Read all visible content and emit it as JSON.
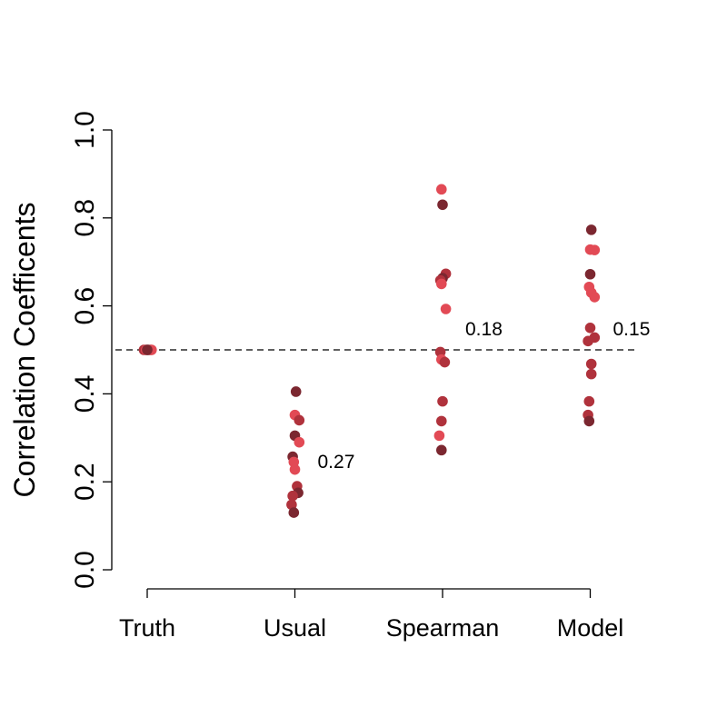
{
  "chart_data": {
    "type": "scatter",
    "title": "",
    "xlabel": "",
    "ylabel": "Correlation Coefficents",
    "ylim": [
      0,
      1
    ],
    "yticks": [
      "0.0",
      "0.2",
      "0.4",
      "0.6",
      "0.8",
      "1.0"
    ],
    "categories": [
      "Truth",
      "Usual",
      "Spearman",
      "Model"
    ],
    "reference_line": {
      "y": 0.5,
      "style": "dashed"
    },
    "grid": false,
    "colors": {
      "dark": "#7b2730",
      "mid": "#b0323c",
      "light": "#e24a55"
    },
    "groups": [
      {
        "category": "Truth",
        "annotation": "",
        "points": [
          {
            "dx": -0.03,
            "y": 0.5,
            "c": "mid"
          },
          {
            "dx": -0.01,
            "y": 0.5,
            "c": "light"
          },
          {
            "dx": 0.01,
            "y": 0.5,
            "c": "dark"
          },
          {
            "dx": 0.03,
            "y": 0.5,
            "c": "mid"
          },
          {
            "dx": 0.04,
            "y": 0.5,
            "c": "light"
          },
          {
            "dx": 0.0,
            "y": 0.5,
            "c": "dark"
          }
        ]
      },
      {
        "category": "Usual",
        "annotation": "0.27",
        "points": [
          {
            "dx": 0.01,
            "y": 0.405,
            "c": "dark"
          },
          {
            "dx": 0.0,
            "y": 0.352,
            "c": "light"
          },
          {
            "dx": 0.04,
            "y": 0.34,
            "c": "mid"
          },
          {
            "dx": 0.0,
            "y": 0.305,
            "c": "dark"
          },
          {
            "dx": 0.04,
            "y": 0.29,
            "c": "light"
          },
          {
            "dx": -0.02,
            "y": 0.257,
            "c": "dark"
          },
          {
            "dx": -0.01,
            "y": 0.245,
            "c": "light"
          },
          {
            "dx": 0.0,
            "y": 0.228,
            "c": "light"
          },
          {
            "dx": 0.02,
            "y": 0.19,
            "c": "mid"
          },
          {
            "dx": 0.03,
            "y": 0.175,
            "c": "dark"
          },
          {
            "dx": -0.02,
            "y": 0.168,
            "c": "mid"
          },
          {
            "dx": -0.03,
            "y": 0.148,
            "c": "mid"
          },
          {
            "dx": -0.01,
            "y": 0.13,
            "c": "dark"
          }
        ]
      },
      {
        "category": "Spearman",
        "annotation": "0.18",
        "points": [
          {
            "dx": -0.01,
            "y": 0.865,
            "c": "light"
          },
          {
            "dx": 0.0,
            "y": 0.83,
            "c": "dark"
          },
          {
            "dx": 0.03,
            "y": 0.673,
            "c": "mid"
          },
          {
            "dx": 0.0,
            "y": 0.663,
            "c": "dark"
          },
          {
            "dx": -0.02,
            "y": 0.658,
            "c": "mid"
          },
          {
            "dx": -0.01,
            "y": 0.65,
            "c": "light"
          },
          {
            "dx": 0.03,
            "y": 0.593,
            "c": "light"
          },
          {
            "dx": -0.02,
            "y": 0.495,
            "c": "mid"
          },
          {
            "dx": -0.01,
            "y": 0.478,
            "c": "light"
          },
          {
            "dx": 0.02,
            "y": 0.472,
            "c": "mid"
          },
          {
            "dx": 0.0,
            "y": 0.383,
            "c": "mid"
          },
          {
            "dx": -0.01,
            "y": 0.338,
            "c": "mid"
          },
          {
            "dx": -0.03,
            "y": 0.305,
            "c": "light"
          },
          {
            "dx": -0.01,
            "y": 0.272,
            "c": "dark"
          }
        ]
      },
      {
        "category": "Model",
        "annotation": "0.15",
        "points": [
          {
            "dx": 0.01,
            "y": 0.773,
            "c": "dark"
          },
          {
            "dx": 0.0,
            "y": 0.728,
            "c": "light"
          },
          {
            "dx": 0.04,
            "y": 0.727,
            "c": "light"
          },
          {
            "dx": 0.0,
            "y": 0.672,
            "c": "dark"
          },
          {
            "dx": -0.01,
            "y": 0.643,
            "c": "light"
          },
          {
            "dx": 0.01,
            "y": 0.63,
            "c": "light"
          },
          {
            "dx": 0.04,
            "y": 0.62,
            "c": "light"
          },
          {
            "dx": 0.0,
            "y": 0.55,
            "c": "mid"
          },
          {
            "dx": 0.04,
            "y": 0.528,
            "c": "mid"
          },
          {
            "dx": -0.02,
            "y": 0.52,
            "c": "mid"
          },
          {
            "dx": 0.01,
            "y": 0.468,
            "c": "mid"
          },
          {
            "dx": 0.01,
            "y": 0.445,
            "c": "mid"
          },
          {
            "dx": -0.01,
            "y": 0.383,
            "c": "mid"
          },
          {
            "dx": -0.02,
            "y": 0.352,
            "c": "mid"
          },
          {
            "dx": -0.01,
            "y": 0.338,
            "c": "dark"
          }
        ]
      }
    ]
  }
}
